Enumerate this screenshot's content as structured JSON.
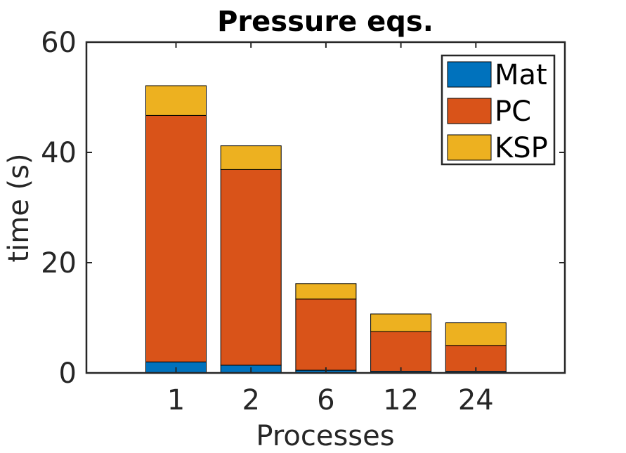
{
  "chart_data": {
    "type": "bar",
    "stacked": true,
    "title": "Pressure eqs.",
    "xlabel": "Processes",
    "ylabel": "time (s)",
    "categories": [
      "1",
      "2",
      "6",
      "12",
      "24"
    ],
    "ylim": [
      0,
      60
    ],
    "yticks": [
      0,
      20,
      40,
      60
    ],
    "grid": false,
    "legend_position": "top-right",
    "series": [
      {
        "name": "Mat",
        "color": "#0072BD",
        "values": [
          2.0,
          1.4,
          0.5,
          0.3,
          0.3
        ]
      },
      {
        "name": "PC",
        "color": "#D95319",
        "values": [
          44.7,
          35.5,
          12.9,
          7.2,
          4.7
        ]
      },
      {
        "name": "KSP",
        "color": "#EDB120",
        "values": [
          5.4,
          4.3,
          2.8,
          3.2,
          4.1
        ]
      }
    ]
  }
}
